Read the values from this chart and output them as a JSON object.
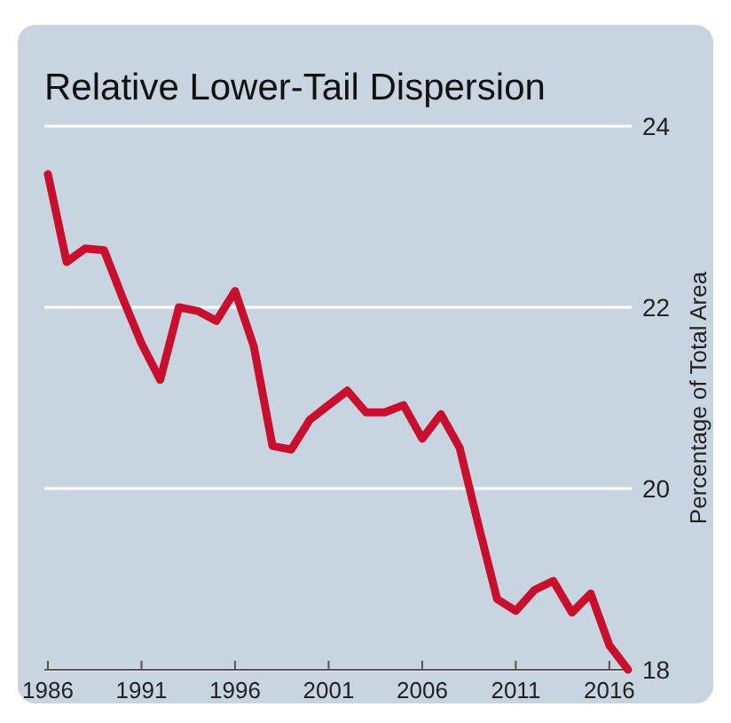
{
  "chart_data": {
    "type": "line",
    "title": "Relative Lower-Tail Dispersion",
    "ylabel": "Percentage of Total Area",
    "x": [
      1986,
      1987,
      1988,
      1989,
      1990,
      1991,
      1992,
      1993,
      1994,
      1995,
      1996,
      1997,
      1998,
      1999,
      2000,
      2001,
      2002,
      2003,
      2004,
      2005,
      2006,
      2007,
      2008,
      2009,
      2010,
      2011,
      2012,
      2013,
      2014,
      2015,
      2016,
      2017
    ],
    "series": [
      {
        "color": "#c8102e",
        "values": [
          23.47,
          22.5,
          22.65,
          22.63,
          22.1,
          21.6,
          21.2,
          22.0,
          21.96,
          21.85,
          22.18,
          21.57,
          20.47,
          20.43,
          20.76,
          20.92,
          21.08,
          20.84,
          20.84,
          20.92,
          20.55,
          20.82,
          20.45,
          19.6,
          18.78,
          18.65,
          18.88,
          18.98,
          18.63,
          18.84,
          18.27,
          18.0
        ]
      }
    ],
    "xlim": [
      1986,
      2017
    ],
    "xticks": [
      1986,
      1991,
      1996,
      2001,
      2006,
      2011,
      2016
    ],
    "ylim": [
      18,
      24
    ],
    "yticks": [
      18,
      20,
      22,
      24
    ],
    "grid": "y",
    "marker": "none",
    "line_style": "solid"
  }
}
